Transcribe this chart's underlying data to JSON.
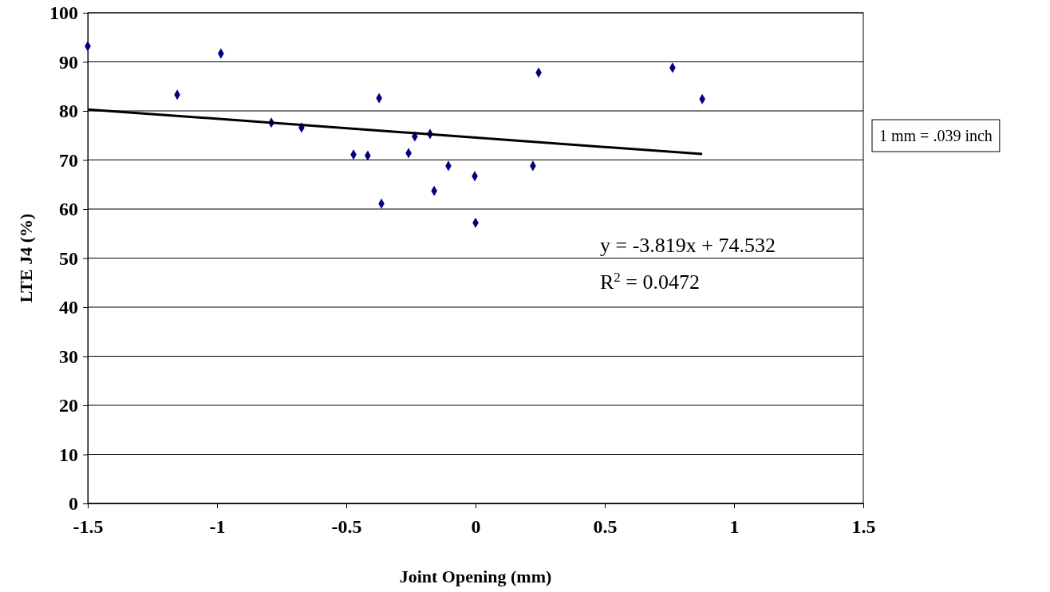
{
  "chart_data": {
    "type": "scatter",
    "xlabel": "Joint Opening (mm)",
    "ylabel": "LTE J4 (%)",
    "xlim": [
      -1.5,
      1.5
    ],
    "xticks": [
      -1.5,
      -1,
      -0.5,
      0,
      0.5,
      1,
      1.5
    ],
    "ylim": [
      0,
      100
    ],
    "yticks": [
      0,
      10,
      20,
      30,
      40,
      50,
      60,
      70,
      80,
      90,
      100
    ],
    "grid": "y",
    "marker": "diamond",
    "series": [
      {
        "color": "#000080",
        "x": [
          -1.5,
          -1.154,
          -0.985,
          -0.79,
          -0.673,
          -0.472,
          -0.417,
          -0.373,
          -0.364,
          -0.259,
          -0.235,
          -0.176,
          -0.16,
          -0.105,
          -0.003,
          0.0,
          0.222,
          0.244,
          0.762,
          0.877
        ],
        "values": [
          93.2,
          83.3,
          91.7,
          77.6,
          76.6,
          71.1,
          70.9,
          82.6,
          61.1,
          71.4,
          74.8,
          75.3,
          63.7,
          68.8,
          66.7,
          57.2,
          68.8,
          87.8,
          88.8,
          82.4
        ]
      },
      {
        "type": "line",
        "color": "#000000",
        "marker": "none",
        "line_style": "solid",
        "x": [
          -1.5,
          0.877
        ],
        "values": [
          80.3,
          71.2
        ]
      }
    ],
    "annotations": [
      "y = -3.819x + 74.532",
      "R$^{2}$  = 0.0472",
      "1 mm = .039 inch"
    ]
  }
}
